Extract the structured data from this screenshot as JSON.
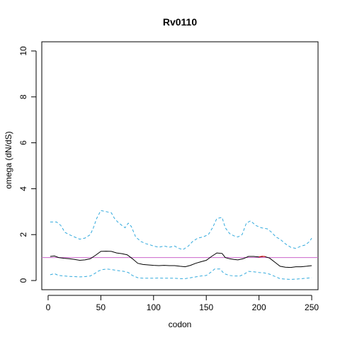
{
  "chart_data": {
    "type": "line",
    "title": "Rv0110",
    "xlabel": "codon",
    "ylabel": "omega (dN/dS)",
    "xlim": [
      -6,
      256
    ],
    "ylim": [
      -0.4,
      10.4
    ],
    "x_ticks": [
      0,
      50,
      100,
      150,
      200,
      250
    ],
    "y_ticks": [
      0,
      2,
      4,
      6,
      8,
      10
    ],
    "reference_line": {
      "y": 1.0,
      "color": "#cc66cc"
    },
    "colors": {
      "mean": "#000000",
      "bounds": "#33aadd",
      "highlight": "#dd0000"
    },
    "series": [
      {
        "role": "upper",
        "style": "dashed",
        "points": [
          [
            2,
            2.55
          ],
          [
            8,
            2.55
          ],
          [
            12,
            2.4
          ],
          [
            16,
            2.1
          ],
          [
            20,
            2.0
          ],
          [
            25,
            1.9
          ],
          [
            30,
            1.8
          ],
          [
            35,
            1.85
          ],
          [
            40,
            2.0
          ],
          [
            43,
            2.3
          ],
          [
            46,
            2.7
          ],
          [
            50,
            3.05
          ],
          [
            55,
            3.0
          ],
          [
            60,
            2.95
          ],
          [
            63,
            2.7
          ],
          [
            66,
            2.55
          ],
          [
            70,
            2.4
          ],
          [
            73,
            2.3
          ],
          [
            76,
            2.5
          ],
          [
            79,
            2.35
          ],
          [
            83,
            1.9
          ],
          [
            88,
            1.7
          ],
          [
            93,
            1.6
          ],
          [
            97,
            1.55
          ],
          [
            100,
            1.5
          ],
          [
            105,
            1.45
          ],
          [
            110,
            1.5
          ],
          [
            115,
            1.45
          ],
          [
            120,
            1.5
          ],
          [
            124,
            1.4
          ],
          [
            128,
            1.35
          ],
          [
            133,
            1.5
          ],
          [
            137,
            1.7
          ],
          [
            142,
            1.85
          ],
          [
            147,
            1.9
          ],
          [
            152,
            2.0
          ],
          [
            156,
            2.3
          ],
          [
            160,
            2.7
          ],
          [
            165,
            2.75
          ],
          [
            168,
            2.3
          ],
          [
            172,
            2.05
          ],
          [
            176,
            1.95
          ],
          [
            180,
            1.9
          ],
          [
            184,
            2.0
          ],
          [
            188,
            2.5
          ],
          [
            192,
            2.6
          ],
          [
            197,
            2.4
          ],
          [
            202,
            2.3
          ],
          [
            208,
            2.25
          ],
          [
            212,
            2.1
          ],
          [
            216,
            1.9
          ],
          [
            220,
            1.8
          ],
          [
            225,
            1.6
          ],
          [
            230,
            1.45
          ],
          [
            235,
            1.4
          ],
          [
            240,
            1.5
          ],
          [
            244,
            1.55
          ],
          [
            248,
            1.7
          ],
          [
            250,
            1.85
          ]
        ]
      },
      {
        "role": "mean",
        "style": "solid",
        "points": [
          [
            2,
            1.05
          ],
          [
            6,
            1.07
          ],
          [
            10,
            1.0
          ],
          [
            15,
            0.97
          ],
          [
            20,
            0.95
          ],
          [
            25,
            0.92
          ],
          [
            30,
            0.88
          ],
          [
            35,
            0.9
          ],
          [
            40,
            0.95
          ],
          [
            45,
            1.1
          ],
          [
            50,
            1.27
          ],
          [
            55,
            1.28
          ],
          [
            60,
            1.27
          ],
          [
            65,
            1.2
          ],
          [
            70,
            1.17
          ],
          [
            75,
            1.12
          ],
          [
            80,
            0.95
          ],
          [
            85,
            0.75
          ],
          [
            90,
            0.7
          ],
          [
            95,
            0.68
          ],
          [
            100,
            0.66
          ],
          [
            105,
            0.65
          ],
          [
            110,
            0.66
          ],
          [
            115,
            0.65
          ],
          [
            120,
            0.65
          ],
          [
            125,
            0.62
          ],
          [
            130,
            0.6
          ],
          [
            135,
            0.66
          ],
          [
            140,
            0.75
          ],
          [
            145,
            0.82
          ],
          [
            150,
            0.88
          ],
          [
            155,
            1.05
          ],
          [
            160,
            1.2
          ],
          [
            165,
            1.18
          ],
          [
            168,
            1.0
          ],
          [
            172,
            0.95
          ],
          [
            176,
            0.92
          ],
          [
            180,
            0.9
          ],
          [
            185,
            0.95
          ],
          [
            190,
            1.05
          ],
          [
            195,
            1.05
          ],
          [
            200,
            1.03
          ],
          [
            205,
            1.05
          ],
          [
            210,
            0.98
          ],
          [
            215,
            0.8
          ],
          [
            220,
            0.62
          ],
          [
            225,
            0.58
          ],
          [
            230,
            0.57
          ],
          [
            235,
            0.6
          ],
          [
            240,
            0.6
          ],
          [
            245,
            0.62
          ],
          [
            250,
            0.65
          ]
        ]
      },
      {
        "role": "lower",
        "style": "dashed",
        "points": [
          [
            2,
            0.25
          ],
          [
            6,
            0.3
          ],
          [
            10,
            0.22
          ],
          [
            15,
            0.2
          ],
          [
            20,
            0.18
          ],
          [
            25,
            0.17
          ],
          [
            30,
            0.16
          ],
          [
            35,
            0.17
          ],
          [
            40,
            0.2
          ],
          [
            44,
            0.3
          ],
          [
            48,
            0.42
          ],
          [
            52,
            0.48
          ],
          [
            56,
            0.5
          ],
          [
            60,
            0.48
          ],
          [
            64,
            0.45
          ],
          [
            68,
            0.42
          ],
          [
            72,
            0.4
          ],
          [
            76,
            0.35
          ],
          [
            80,
            0.22
          ],
          [
            85,
            0.12
          ],
          [
            90,
            0.1
          ],
          [
            95,
            0.1
          ],
          [
            100,
            0.1
          ],
          [
            105,
            0.11
          ],
          [
            110,
            0.1
          ],
          [
            115,
            0.1
          ],
          [
            120,
            0.1
          ],
          [
            125,
            0.08
          ],
          [
            130,
            0.08
          ],
          [
            135,
            0.12
          ],
          [
            140,
            0.16
          ],
          [
            145,
            0.2
          ],
          [
            150,
            0.22
          ],
          [
            154,
            0.35
          ],
          [
            158,
            0.5
          ],
          [
            163,
            0.5
          ],
          [
            167,
            0.3
          ],
          [
            172,
            0.22
          ],
          [
            177,
            0.2
          ],
          [
            182,
            0.2
          ],
          [
            186,
            0.28
          ],
          [
            190,
            0.4
          ],
          [
            195,
            0.38
          ],
          [
            200,
            0.35
          ],
          [
            205,
            0.33
          ],
          [
            210,
            0.28
          ],
          [
            215,
            0.18
          ],
          [
            220,
            0.08
          ],
          [
            225,
            0.06
          ],
          [
            230,
            0.05
          ],
          [
            235,
            0.06
          ],
          [
            240,
            0.08
          ],
          [
            245,
            0.1
          ],
          [
            250,
            0.12
          ]
        ]
      },
      {
        "role": "highlight",
        "style": "solid",
        "points": [
          [
            200,
            1.03
          ],
          [
            203,
            1.06
          ],
          [
            206,
            1.04
          ]
        ]
      }
    ]
  }
}
